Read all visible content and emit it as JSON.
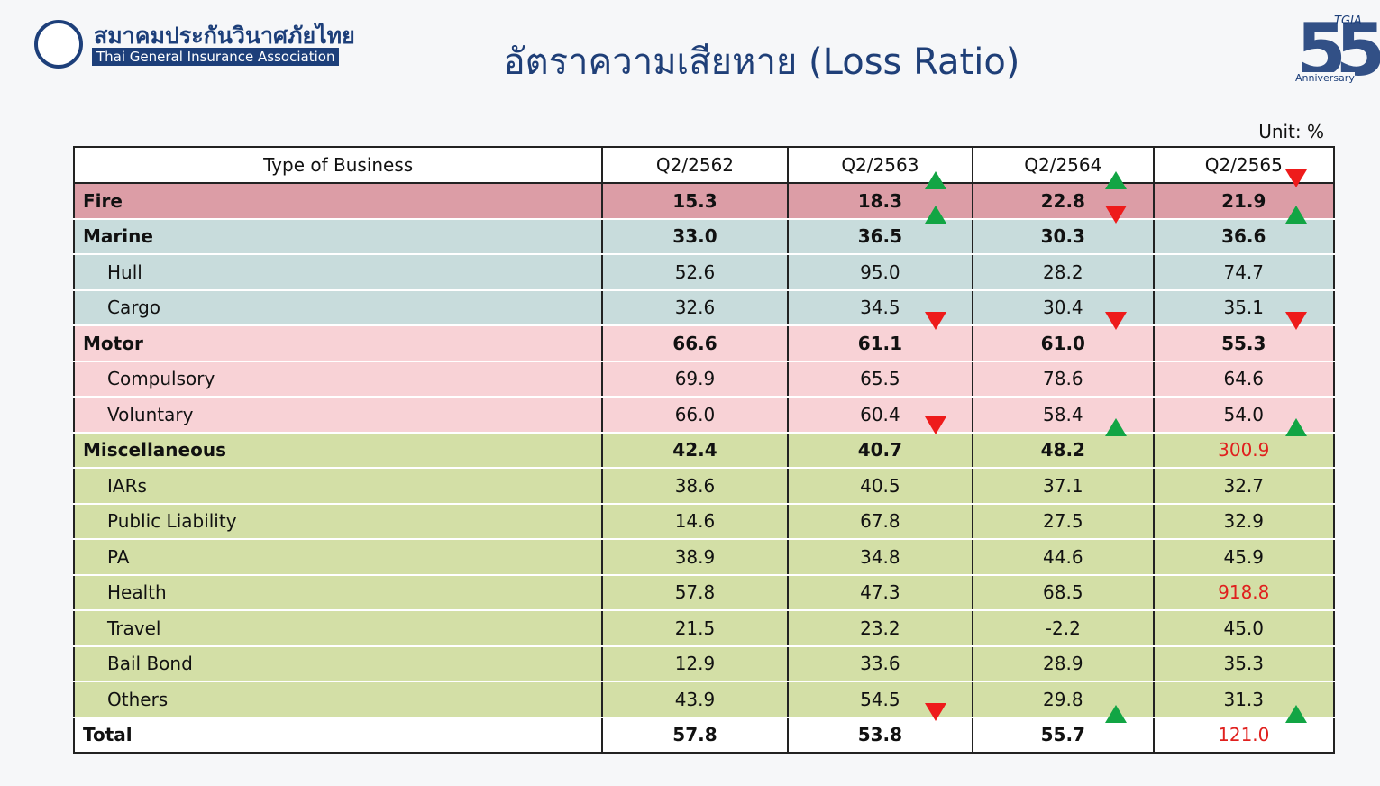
{
  "header": {
    "org_thai": "สมาคมประกันวินาศภัยไทย",
    "org_en": "Thai General Insurance Association",
    "title": "อัตราความเสียหาย (Loss Ratio)",
    "anniversary_mark": "TGIA",
    "anniversary_number": "55",
    "anniversary_text": "Anniversary"
  },
  "unit": "Unit: %",
  "table": {
    "columns": [
      "Type of Business",
      "Q2/2562",
      "Q2/2563",
      "Q2/2564",
      "Q2/2565"
    ],
    "rows": [
      [
        "Fire",
        "15.3",
        "18.3",
        "22.8",
        "21.9"
      ],
      [
        "Marine",
        "33.0",
        "36.5",
        "30.3",
        "36.6"
      ],
      [
        "Hull",
        "52.6",
        "95.0",
        "28.2",
        "74.7"
      ],
      [
        "Cargo",
        "32.6",
        "34.5",
        "30.4",
        "35.1"
      ],
      [
        "Motor",
        "66.6",
        "61.1",
        "61.0",
        "55.3"
      ],
      [
        "Compulsory",
        "69.9",
        "65.5",
        "78.6",
        "64.6"
      ],
      [
        "Voluntary",
        "66.0",
        "60.4",
        "58.4",
        "54.0"
      ],
      [
        "Miscellaneous",
        "42.4",
        "40.7",
        "48.2",
        "300.9"
      ],
      [
        "IARs",
        "38.6",
        "40.5",
        "37.1",
        "32.7"
      ],
      [
        "Public Liability",
        "14.6",
        "67.8",
        "27.5",
        "32.9"
      ],
      [
        "PA",
        "38.9",
        "34.8",
        "44.6",
        "45.9"
      ],
      [
        "Health",
        "57.8",
        "47.3",
        "68.5",
        "918.8"
      ],
      [
        "Travel",
        "21.5",
        "23.2",
        "-2.2",
        "45.0"
      ],
      [
        "Bail Bond",
        "12.9",
        "33.6",
        "28.9",
        "35.3"
      ],
      [
        "Others",
        "43.9",
        "54.5",
        "29.8",
        "31.3"
      ],
      [
        "Total",
        "57.8",
        "53.8",
        "55.7",
        "121.0"
      ]
    ]
  }
}
